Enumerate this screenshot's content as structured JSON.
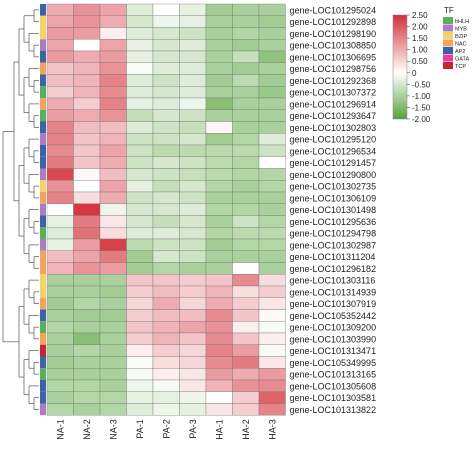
{
  "chart_data": {
    "type": "heatmap",
    "columns": [
      "NA-1",
      "NA-2",
      "NA-3",
      "PA-1",
      "PA-2",
      "PA-3",
      "HA-1",
      "HA-2",
      "HA-3"
    ],
    "rows": [
      "gene-LOC101295024",
      "gene-LOC101292898",
      "gene-LOC101298190",
      "gene-LOC101308850",
      "gene-LOC101306695",
      "gene-LOC101298756",
      "gene-LOC101292368",
      "gene-LOC101307372",
      "gene-LOC101296914",
      "gene-LOC101293647",
      "gene-LOC101302803",
      "gene-LOC101295120",
      "gene-LOC101296534",
      "gene-LOC101291457",
      "gene-LOC101290800",
      "gene-LOC101302735",
      "gene-LOC101306109",
      "gene-LOC101301498",
      "gene-LOC101295636",
      "gene-LOC101294798",
      "gene-LOC101302987",
      "gene-LOC101311204",
      "gene-LOC101296182",
      "gene-LOC101303116",
      "gene-LOC101314939",
      "gene-LOC101307919",
      "gene-LOC105352442",
      "gene-LOC101309200",
      "gene-LOC101303990",
      "gene-LOC101313471",
      "gene-LOC105349995",
      "gene-LOC101313165",
      "gene-LOC101305608",
      "gene-LOC101303581",
      "gene-LOC101313822"
    ],
    "values": [
      [
        1.0,
        1.3,
        1.1,
        -0.4,
        0.0,
        -0.3,
        -1.1,
        -1.0,
        -1.0
      ],
      [
        1.1,
        1.3,
        1.0,
        -0.5,
        -0.2,
        -0.3,
        -1.0,
        -1.0,
        -1.1
      ],
      [
        1.2,
        1.2,
        0.2,
        -0.4,
        -0.5,
        -0.6,
        -1.0,
        -0.9,
        -1.0
      ],
      [
        1.1,
        0.0,
        1.1,
        -0.3,
        -0.5,
        -0.4,
        -1.0,
        -1.1,
        -1.0
      ],
      [
        1.2,
        1.0,
        1.2,
        -0.3,
        -0.5,
        -0.5,
        -1.0,
        -0.7,
        -1.3
      ],
      [
        0.7,
        0.9,
        1.3,
        -0.1,
        -0.4,
        -0.4,
        -1.0,
        -1.1,
        -1.0
      ],
      [
        0.8,
        0.9,
        1.5,
        -0.4,
        -0.6,
        -0.4,
        -1.1,
        -0.8,
        -1.1
      ],
      [
        0.6,
        0.9,
        1.4,
        -0.4,
        -0.5,
        -0.4,
        -1.0,
        -1.0,
        -1.2
      ],
      [
        1.0,
        0.6,
        1.5,
        -0.3,
        -0.4,
        -0.2,
        -1.4,
        -1.0,
        -1.0
      ],
      [
        1.2,
        1.0,
        1.3,
        -0.7,
        -0.5,
        -0.6,
        -1.0,
        -1.0,
        -1.0
      ],
      [
        1.5,
        0.8,
        0.8,
        -0.4,
        -0.6,
        -0.7,
        0.1,
        -1.0,
        -1.0
      ],
      [
        1.5,
        0.7,
        0.9,
        -0.6,
        -0.6,
        -0.5,
        -1.1,
        -0.9,
        -0.4
      ],
      [
        1.4,
        0.7,
        1.1,
        -0.6,
        -0.8,
        -0.8,
        -0.8,
        -0.8,
        -0.6
      ],
      [
        1.6,
        0.7,
        1.0,
        -0.6,
        -0.5,
        -0.6,
        -0.8,
        -0.9,
        0.0
      ],
      [
        2.2,
        0.1,
        0.8,
        -0.5,
        -0.6,
        -0.7,
        -0.8,
        -0.9,
        -0.9
      ],
      [
        1.3,
        0.0,
        1.1,
        -0.3,
        -0.7,
        -0.5,
        -0.9,
        -1.0,
        -0.9
      ],
      [
        1.5,
        0.4,
        1.0,
        -0.6,
        -0.5,
        -0.6,
        -1.0,
        -1.0,
        -1.0
      ],
      [
        0.0,
        2.4,
        -0.2,
        -0.5,
        -0.5,
        -0.4,
        -0.9,
        -0.9,
        -1.0
      ],
      [
        -0.3,
        1.6,
        0.3,
        -0.5,
        -0.7,
        -0.5,
        -1.0,
        -0.6,
        -0.9
      ],
      [
        -0.4,
        1.7,
        0.4,
        -0.4,
        -0.4,
        -0.5,
        -0.9,
        -0.8,
        -0.8
      ],
      [
        -0.3,
        1.2,
        2.3,
        -0.8,
        -0.6,
        -0.6,
        -1.1,
        -0.9,
        -0.9
      ],
      [
        0.8,
        1.1,
        1.6,
        -1.1,
        -0.5,
        -0.6,
        -1.0,
        -1.0,
        -1.0
      ],
      [
        0.9,
        1.3,
        1.2,
        -1.1,
        -0.9,
        -1.0,
        -1.0,
        0.0,
        -1.0
      ],
      [
        -1.0,
        -1.0,
        -1.0,
        0.7,
        0.7,
        0.6,
        0.7,
        1.4,
        0.4
      ],
      [
        -1.0,
        -1.0,
        -1.1,
        0.6,
        0.8,
        0.6,
        0.9,
        0.4,
        0.6
      ],
      [
        -1.1,
        -0.9,
        -1.0,
        0.5,
        1.0,
        0.5,
        1.0,
        0.6,
        0.3
      ],
      [
        -1.0,
        -1.1,
        -1.1,
        0.6,
        0.8,
        0.8,
        1.4,
        0.7,
        0.1
      ],
      [
        -0.9,
        -1.0,
        -1.0,
        0.7,
        0.9,
        1.1,
        1.3,
        0.2,
        -0.1
      ],
      [
        -1.0,
        -1.4,
        -1.0,
        0.6,
        0.9,
        0.7,
        1.4,
        0.7,
        0.2
      ],
      [
        -1.0,
        -0.9,
        -1.0,
        0.2,
        0.6,
        0.5,
        1.5,
        1.2,
        -0.1
      ],
      [
        -1.1,
        -1.0,
        -1.0,
        -0.1,
        0.4,
        0.5,
        1.4,
        1.6,
        0.3
      ],
      [
        -1.0,
        -1.0,
        -1.0,
        -0.1,
        0.2,
        0.3,
        1.2,
        1.0,
        1.2
      ],
      [
        -0.9,
        -0.9,
        -1.0,
        -0.2,
        -0.1,
        0.3,
        0.9,
        1.3,
        1.4
      ],
      [
        -1.0,
        -0.9,
        -0.9,
        -0.3,
        -0.3,
        -0.2,
        0.0,
        0.6,
        1.9
      ],
      [
        -0.9,
        -1.0,
        -0.9,
        -0.4,
        -0.2,
        -0.3,
        0.3,
        0.6,
        1.5
      ]
    ],
    "row_tf_classes": [
      "AP2",
      "BZIP",
      "BZIP",
      "MYB",
      "AP2",
      "NAC",
      "AP2",
      "bHLH",
      "NAC",
      "bHLH",
      "AP2",
      "MYB",
      "AP2",
      "AP2",
      "MYB",
      "BZIP",
      "NAC",
      "MYB",
      "AP2",
      "bHLH",
      "MYB",
      "NAC",
      "NAC",
      "BZIP",
      "BZIP",
      "NAC",
      "AP2",
      "bHLH",
      "NAC",
      "TCP",
      "AP2",
      "bHLH",
      "AP2",
      "AP2",
      "MYB"
    ],
    "colorbar": {
      "ticks": [
        2.5,
        2,
        1.5,
        1,
        0.5,
        0,
        -0.5,
        -1,
        -1.5,
        -2
      ],
      "tick_labels": [
        "2.50",
        "2.00",
        "1.50",
        "1.00",
        "0.50",
        "0",
        "-0.50",
        "-1.00",
        "-1.50",
        "-2.00"
      ],
      "range": [
        -2,
        2.5
      ],
      "colors": {
        "low": "#55a33a",
        "mid": "#ffffff",
        "high": "#d4303a"
      }
    },
    "legend": {
      "title": "TF",
      "entries": [
        {
          "label": "bHLH",
          "color": "#59b05c"
        },
        {
          "label": "MYB",
          "color": "#a97ec1"
        },
        {
          "label": "BZIP",
          "color": "#f5d36a"
        },
        {
          "label": "NAC",
          "color": "#f3a45a"
        },
        {
          "label": "AP2",
          "color": "#3b64a8"
        },
        {
          "label": "GATA",
          "color": "#e6409b"
        },
        {
          "label": "TCP",
          "color": "#c2282d"
        }
      ]
    },
    "row_groups": {
      "cluster_break_after_row": 23
    }
  }
}
